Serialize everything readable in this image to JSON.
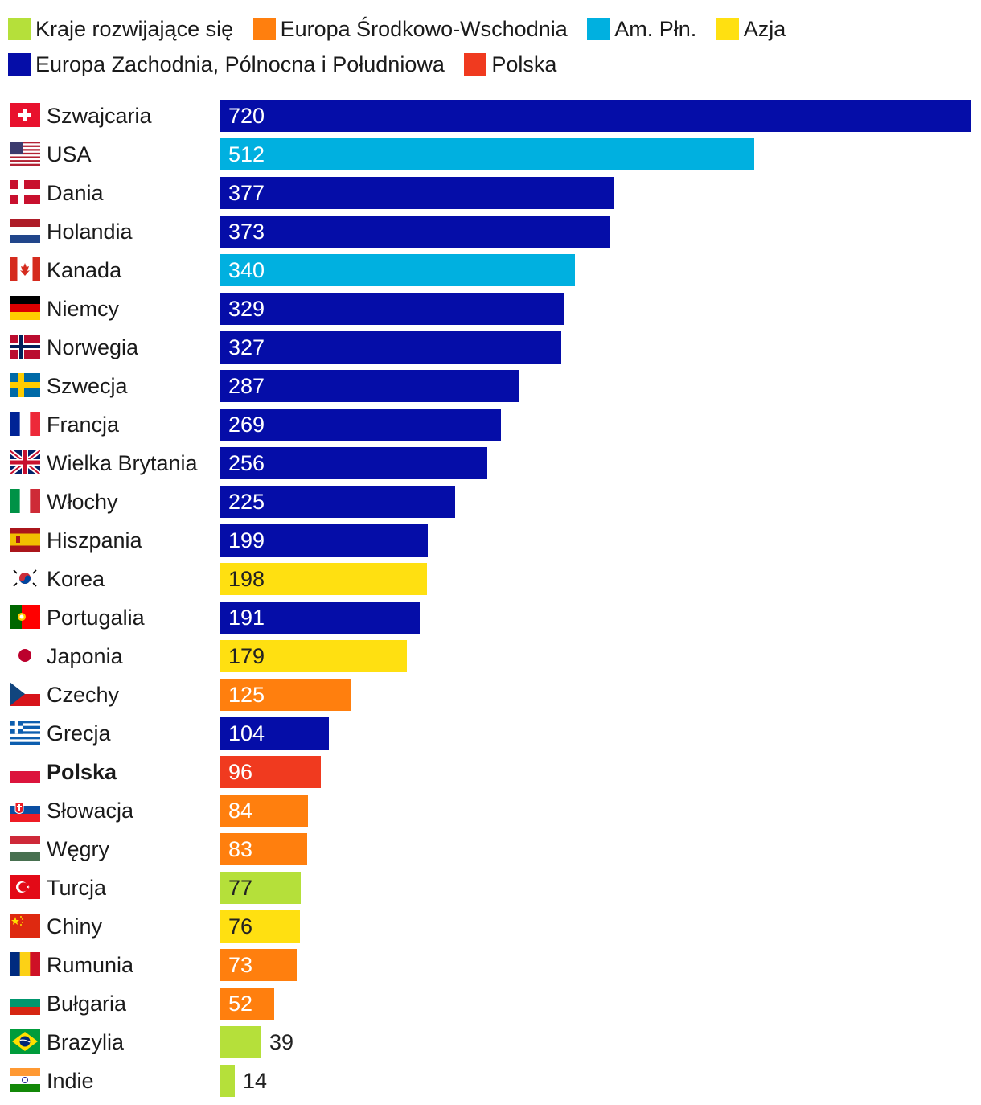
{
  "legend": [
    {
      "label": "Kraje rozwijające się",
      "color": "#b5e03a"
    },
    {
      "label": "Europa Środkowo-Wschodnia",
      "color": "#ff7f0e"
    },
    {
      "label": "Am. Płn.",
      "color": "#00b0e0"
    },
    {
      "label": "Azja",
      "color": "#ffe011"
    },
    {
      "label": "Europa Zachodnia, Pólnocna i Południowa",
      "color": "#050da8"
    },
    {
      "label": "Polska",
      "color": "#f03a1f"
    }
  ],
  "chart_data": {
    "type": "bar",
    "orientation": "horizontal",
    "title": "",
    "xlabel": "",
    "ylabel": "",
    "xlim": [
      0,
      720
    ],
    "grid": false,
    "legend_position": "top",
    "categories": [
      "Szwajcaria",
      "USA",
      "Dania",
      "Holandia",
      "Kanada",
      "Niemcy",
      "Norwegia",
      "Szwecja",
      "Francja",
      "Wielka Brytania",
      "Włochy",
      "Hiszpania",
      "Korea",
      "Portugalia",
      "Japonia",
      "Czechy",
      "Grecja",
      "Polska",
      "Słowacja",
      "Węgry",
      "Turcja",
      "Chiny",
      "Rumunia",
      "Bułgaria",
      "Brazylia",
      "Indie"
    ],
    "values": [
      720,
      512,
      377,
      373,
      340,
      329,
      327,
      287,
      269,
      256,
      225,
      199,
      198,
      191,
      179,
      125,
      104,
      96,
      84,
      83,
      77,
      76,
      73,
      52,
      39,
      14
    ],
    "groups": [
      "Europa",
      "Am. Płn.",
      "Europa",
      "Europa",
      "Am. Płn.",
      "Europa",
      "Europa",
      "Europa",
      "Europa",
      "Europa",
      "Europa",
      "Europa",
      "Azja",
      "Europa",
      "Azja",
      "Europa Środkowo-Wschodnia",
      "Europa",
      "Polska",
      "Europa Środkowo-Wschodnia",
      "Europa Środkowo-Wschodnia",
      "Kraje rozwijające się",
      "Azja",
      "Europa Środkowo-Wschodnia",
      "Europa Środkowo-Wschodnia",
      "Kraje rozwijające się",
      "Kraje rozwijające się"
    ],
    "colors": [
      "#050da8",
      "#00b0e0",
      "#050da8",
      "#050da8",
      "#00b0e0",
      "#050da8",
      "#050da8",
      "#050da8",
      "#050da8",
      "#050da8",
      "#050da8",
      "#050da8",
      "#ffe011",
      "#050da8",
      "#ffe011",
      "#ff7f0e",
      "#050da8",
      "#f03a1f",
      "#ff7f0e",
      "#ff7f0e",
      "#b5e03a",
      "#ffe011",
      "#ff7f0e",
      "#ff7f0e",
      "#b5e03a",
      "#b5e03a"
    ],
    "flags": [
      "flag-switzerland-icon",
      "flag-usa-icon",
      "flag-denmark-icon",
      "flag-netherlands-icon",
      "flag-canada-icon",
      "flag-germany-icon",
      "flag-norway-icon",
      "flag-sweden-icon",
      "flag-france-icon",
      "flag-uk-icon",
      "flag-italy-icon",
      "flag-spain-icon",
      "flag-korea-icon",
      "flag-portugal-icon",
      "flag-japan-icon",
      "flag-czechia-icon",
      "flag-greece-icon",
      "flag-poland-icon",
      "flag-slovakia-icon",
      "flag-hungary-icon",
      "flag-turkey-icon",
      "flag-china-icon",
      "flag-romania-icon",
      "flag-bulgaria-icon",
      "flag-brazil-icon",
      "flag-india-icon"
    ],
    "highlight": "Polska"
  }
}
